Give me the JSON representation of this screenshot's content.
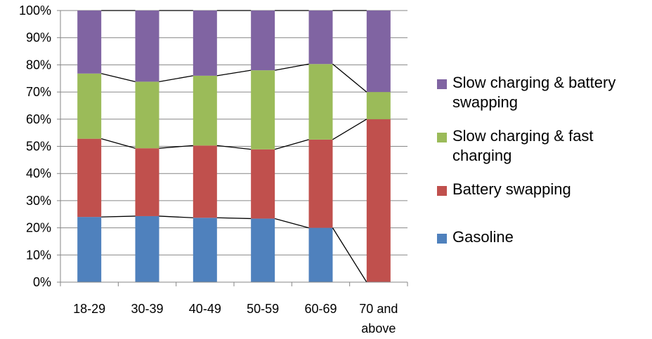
{
  "chart_data": {
    "type": "bar",
    "stacked": true,
    "normalized_percent": true,
    "categories": [
      "18-29",
      "30-39",
      "40-49",
      "50-59",
      "60-69",
      "70 and above"
    ],
    "category_lines": [
      [
        "18-29"
      ],
      [
        "30-39"
      ],
      [
        "40-49"
      ],
      [
        "50-59"
      ],
      [
        "60-69"
      ],
      [
        "70 and",
        "above"
      ]
    ],
    "series": [
      {
        "name": "Gasoline",
        "color": "#4F81BD",
        "values": [
          24,
          24.3,
          23.7,
          23.4,
          20,
          0
        ]
      },
      {
        "name": "Battery swapping",
        "color": "#C0504D",
        "values": [
          28.8,
          25,
          26.6,
          25.5,
          32.5,
          60
        ]
      },
      {
        "name": "Slow charging & fast charging",
        "color": "#9BBB59",
        "values": [
          24,
          24.5,
          25.7,
          29.1,
          27.8,
          10
        ]
      },
      {
        "name": "Slow charging & battery swapping",
        "color": "#8064A2",
        "values": [
          23.2,
          26.2,
          24,
          22,
          19.7,
          30
        ]
      }
    ],
    "yticks": [
      "0%",
      "10%",
      "20%",
      "30%",
      "40%",
      "50%",
      "60%",
      "70%",
      "80%",
      "90%",
      "100%"
    ],
    "ylim": [
      0,
      100
    ],
    "grid": true,
    "series_lines": true,
    "legend_position": "right",
    "legend_order": [
      "Slow charging & battery swapping",
      "Slow charging & fast charging",
      "Battery swapping",
      "Gasoline"
    ],
    "legend_lines": {
      "Slow charging & battery swapping": [
        "Slow charging & battery",
        "swapping"
      ],
      "Slow charging & fast charging": [
        "Slow charging & fast",
        "charging"
      ],
      "Battery swapping": [
        "Battery swapping"
      ],
      "Gasoline": [
        "Gasoline"
      ]
    }
  }
}
